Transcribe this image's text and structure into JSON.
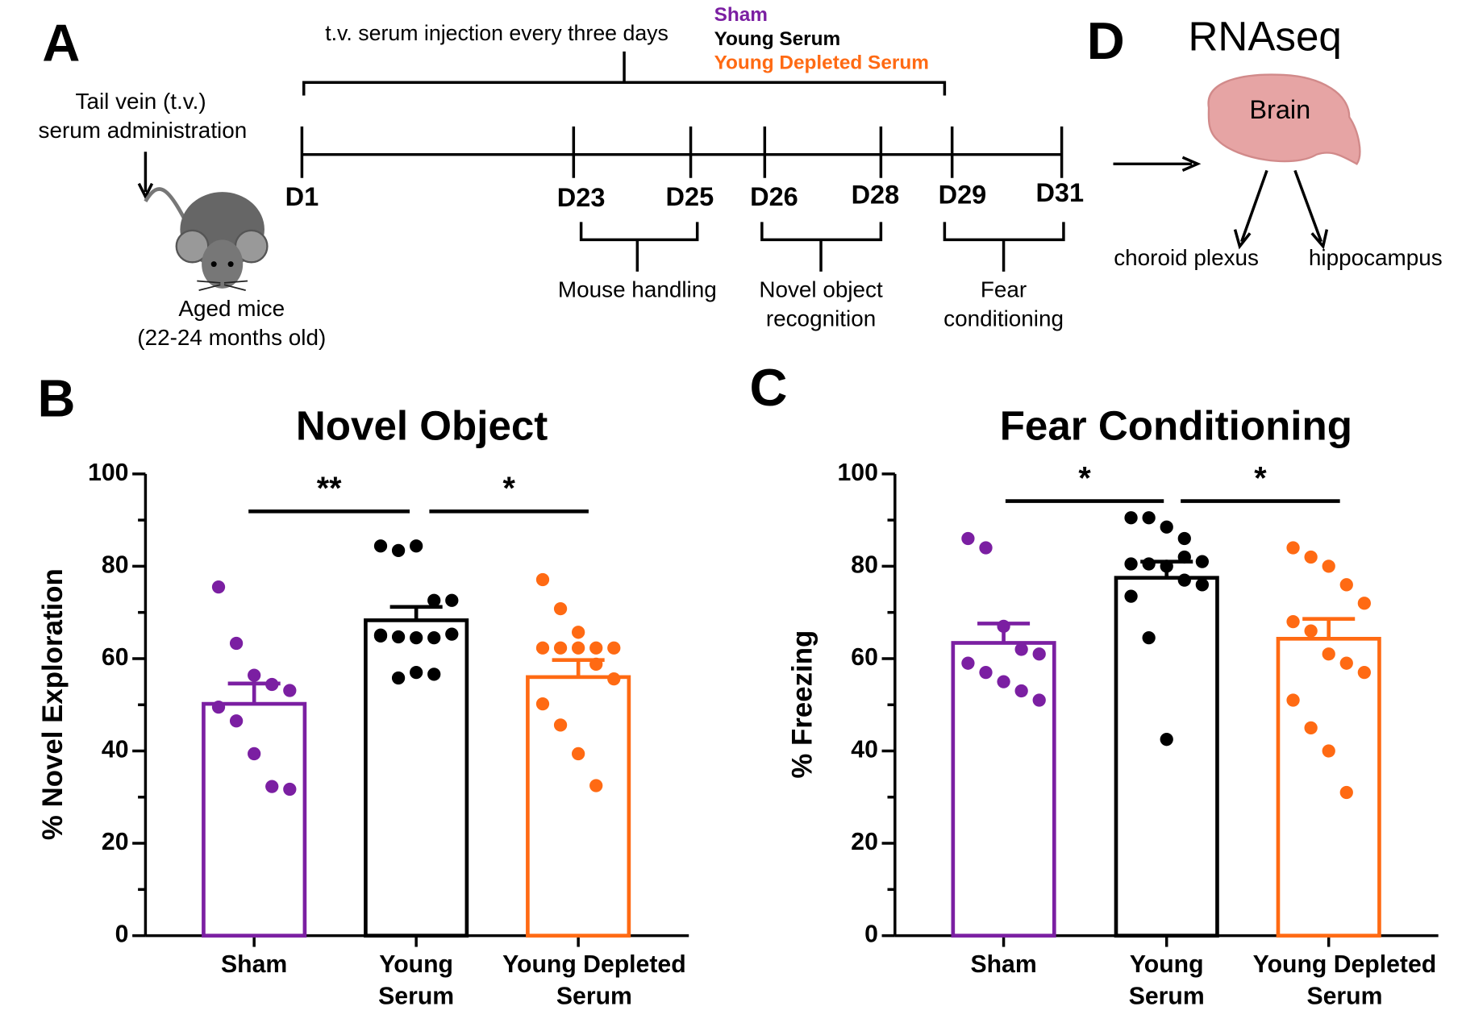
{
  "panel_labels": [
    "A",
    "B",
    "C",
    "D"
  ],
  "timeline": {
    "injection_label": "t.v. serum injection every three days",
    "groups": [
      "Sham",
      "Young Serum",
      "Young Depleted Serum"
    ],
    "group_colors": [
      "#7b1fa2",
      "#000000",
      "#ff6a13"
    ],
    "days": [
      "D1",
      "D23",
      "D25",
      "D26",
      "D28",
      "D29",
      "D31"
    ],
    "phases": [
      [
        "Mouse handling"
      ],
      [
        "Novel object",
        "recognition"
      ],
      [
        "Fear",
        "conditioning"
      ]
    ],
    "administration": [
      "Tail vein (t.v.)",
      "serum administration"
    ],
    "subjects": [
      "Aged mice",
      "(22-24 months old)"
    ]
  },
  "rnaseq": {
    "title": "RNAseq",
    "organ": "Brain",
    "regions": [
      "choroid plexus",
      "hippocampus"
    ]
  },
  "chart_data": [
    {
      "type": "bar",
      "title": "Novel Object",
      "y_label": "% Novel Exploration",
      "category_lines": [
        [
          "Sham"
        ],
        [
          "Young",
          "Serum"
        ],
        [
          "Young Depleted",
          "Serum"
        ]
      ],
      "colors": [
        "#7b1fa2",
        "#000000",
        "#ff6a13"
      ],
      "values": [
        50.2,
        68.3,
        56
      ],
      "errors": [
        4.4,
        2.9,
        3.7
      ],
      "points": [
        [
          75.5,
          63.3,
          56.4,
          54.4,
          53.1,
          49.5,
          46.5,
          39.4,
          32.3,
          31.7
        ],
        [
          84.4,
          83.4,
          84.4,
          72.6,
          72.6,
          65.1,
          64.7,
          64.5,
          64.5,
          65.3,
          64.9,
          55.8,
          57,
          56.6
        ],
        [
          77.1,
          70.8,
          65.7,
          62.3,
          62.3,
          62.3,
          62.3,
          62.3,
          58.8,
          55.6,
          50.2,
          45.6,
          39.4,
          32.5
        ]
      ],
      "annotations": [
        "**",
        "*"
      ],
      "ylim": [
        0,
        100
      ],
      "yticks": [
        0,
        20,
        40,
        60,
        80,
        100
      ],
      "minor_yticks": [
        10,
        30,
        50,
        70,
        90
      ]
    },
    {
      "type": "bar",
      "title": "Fear Conditioning",
      "y_label": "% Freezing",
      "category_lines": [
        [
          "Sham"
        ],
        [
          "Young",
          "Serum"
        ],
        [
          "Young Depleted",
          "Serum"
        ]
      ],
      "colors": [
        "#7b1fa2",
        "#000000",
        "#ff6a13"
      ],
      "values": [
        63.4,
        77.5,
        64.3
      ],
      "errors": [
        4.2,
        3.5,
        4.3
      ],
      "points": [
        [
          86,
          84,
          67,
          62,
          61,
          59,
          57,
          55,
          53,
          51
        ],
        [
          90.5,
          90.5,
          88.5,
          82,
          81,
          80.5,
          80.5,
          80,
          77,
          76,
          73.5,
          64.5,
          42.5,
          86
        ],
        [
          84,
          82,
          80,
          76,
          72,
          68,
          66,
          61,
          59,
          57,
          51,
          45,
          40,
          31
        ]
      ],
      "annotations": [
        "*",
        "*"
      ],
      "ylim": [
        0,
        100
      ],
      "yticks": [
        0,
        20,
        40,
        60,
        80,
        100
      ],
      "minor_yticks": [
        10,
        30,
        50,
        70,
        90
      ]
    }
  ]
}
